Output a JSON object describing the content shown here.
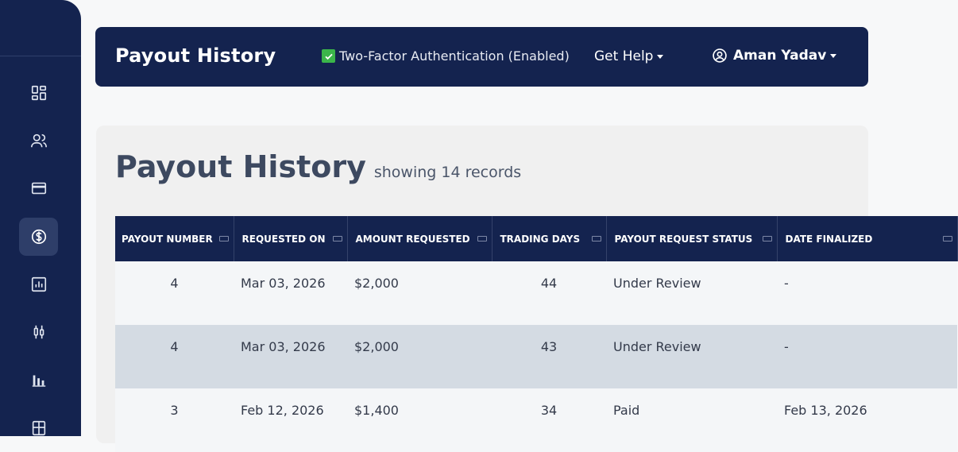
{
  "sidebar": {
    "items": [
      {
        "icon": "dashboard-icon",
        "active": false
      },
      {
        "icon": "users-icon",
        "active": false
      },
      {
        "icon": "credit-card-icon",
        "active": false
      },
      {
        "icon": "dollar-circle-icon",
        "active": true
      },
      {
        "icon": "bar-chart-icon",
        "active": false
      },
      {
        "icon": "candlestick-icon",
        "active": false
      },
      {
        "icon": "stats-icon",
        "active": false
      },
      {
        "icon": "calculator-icon",
        "active": false
      }
    ]
  },
  "header": {
    "title": "Payout History",
    "two_factor": "Two-Factor Authentication (Enabled)",
    "help_label": "Get Help",
    "user_name": "Aman Yadav"
  },
  "main": {
    "title": "Payout History",
    "subtitle": "showing 14 records",
    "table": {
      "columns": [
        "PAYOUT NUMBER",
        "REQUESTED ON",
        "AMOUNT REQUESTED",
        "TRADING DAYS",
        "PAYOUT REQUEST STATUS",
        "DATE FINALIZED"
      ],
      "rows": [
        [
          "4",
          "Mar 03, 2026",
          "$2,000",
          "44",
          "Under Review",
          "-"
        ],
        [
          "4",
          "Mar 03, 2026",
          "$2,000",
          "43",
          "Under Review",
          "-"
        ],
        [
          "3",
          "Feb 12, 2026",
          "$1,400",
          "34",
          "Paid",
          "Feb 13, 2026"
        ]
      ]
    }
  },
  "colors": {
    "navy": "#14234f",
    "accent_check": "#3bb54a"
  }
}
